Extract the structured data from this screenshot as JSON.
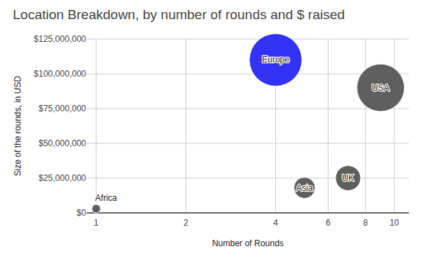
{
  "chart_data": {
    "type": "bubble",
    "title": "Location Breakdown, by number of rounds and $ raised",
    "x_label": "Number of Rounds",
    "y_label": "Size of the rounds, in USD",
    "labels": [
      "Africa",
      "Europe",
      "Asia",
      "UK",
      "USA"
    ],
    "x": [
      1,
      4,
      5,
      7,
      9
    ],
    "values": [
      3000000,
      110000000,
      18000000,
      25000000,
      90000000
    ],
    "size": [
      3000000,
      110000000,
      18000000,
      25000000,
      90000000
    ],
    "colors": [
      "#5f5f5f",
      "#3232f5",
      "#5f5f5f",
      "#5f5f5f",
      "#5f5f5f"
    ],
    "xlim": [
      0.93,
      11.2
    ],
    "xticks": [
      1,
      2,
      4,
      6,
      8,
      10
    ],
    "ylim": [
      0,
      125000000
    ],
    "yticks": [
      {
        "value": 0,
        "label": "$0"
      },
      {
        "value": 25000000,
        "label": "$25,000,000"
      },
      {
        "value": 50000000,
        "label": "$50,000,000"
      },
      {
        "value": 75000000,
        "label": "$75,000,000"
      },
      {
        "value": 100000000,
        "label": "$100,000,000"
      },
      {
        "value": 125000000,
        "label": "$125,000,000"
      }
    ],
    "log": "x",
    "grid": true
  }
}
